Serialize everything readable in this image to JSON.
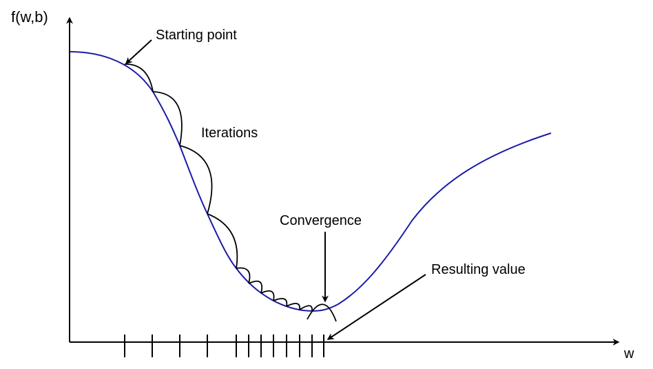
{
  "labels": {
    "y_axis": "f(w,b)",
    "x_axis": "w",
    "starting_point": "Starting point",
    "iterations": "Iterations",
    "convergence": "Convergence",
    "resulting_value": "Resulting value"
  },
  "colors": {
    "curve": "#1a1aa8",
    "ink": "#000000"
  }
}
